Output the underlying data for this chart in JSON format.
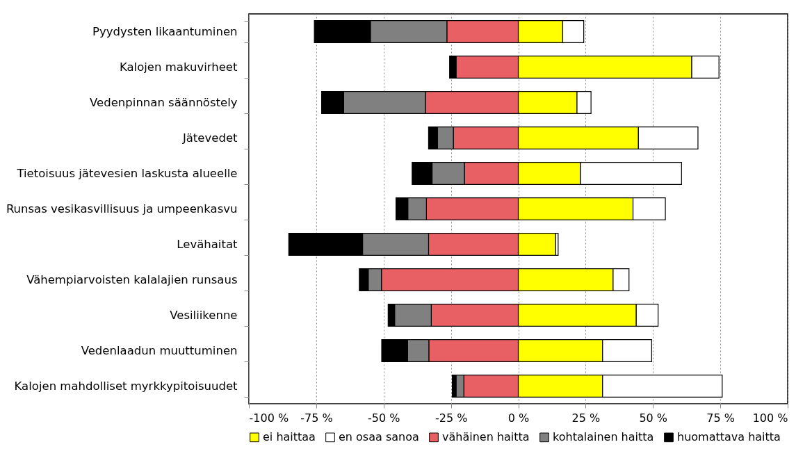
{
  "chart_data": {
    "type": "bar",
    "orientation": "horizontal",
    "stacked": true,
    "categories": [
      "Pyydysten likaantuminen",
      "Kalojen makuvirheet",
      "Vedenpinnan säännöstely",
      "Jätevedet",
      "Tietoisuus jätevesien laskusta alueelle",
      "Runsas vesikasvillisuus ja umpeenkasvu",
      "Levähaitat",
      "Vähempiarvoisten kalalajien runsaus",
      "Vesiliikenne",
      "Vedenlaadun muuttuminen",
      "Kalojen mahdolliset myrkkypitoisuudet"
    ],
    "series": [
      {
        "name": "ei haittaa",
        "color": "#ffff00",
        "values": [
          16.5,
          64.4,
          21.8,
          44.6,
          23.1,
          42.6,
          13.9,
          35.2,
          43.8,
          31.3,
          31.3
        ]
      },
      {
        "name": "en osaa sanoa",
        "color": "#ffffff",
        "values": [
          7.8,
          10.1,
          5.2,
          22.1,
          37.5,
          12.0,
          0.9,
          5.9,
          8.1,
          18.2,
          44.4
        ]
      },
      {
        "name": "vähäinen haitta",
        "color": "#e96064",
        "values": [
          -26.5,
          -23.1,
          -34.5,
          -24.1,
          -20.0,
          -34.1,
          -33.3,
          -50.8,
          -32.3,
          -33.2,
          -20.2
        ]
      },
      {
        "name": "kohtalainen haitta",
        "color": "#808080",
        "values": [
          -28.4,
          null,
          -30.3,
          -5.9,
          -12.0,
          -6.9,
          -24.5,
          -4.9,
          -13.6,
          -7.9,
          -2.9
        ]
      },
      {
        "name": "huomattava haitta",
        "color": "#000000",
        "values": [
          -20.8,
          -2.4,
          -8.2,
          -3.3,
          -7.4,
          -4.4,
          -27.4,
          -3.3,
          -2.4,
          -9.6,
          -1.4
        ]
      }
    ],
    "xlim": [
      -100,
      100
    ],
    "xticks": [
      {
        "value": -100,
        "label": "-100 %"
      },
      {
        "value": -75,
        "label": "-75 %"
      },
      {
        "value": -50,
        "label": "-50 %"
      },
      {
        "value": -25,
        "label": "-25 %"
      },
      {
        "value": 0,
        "label": "0 %"
      },
      {
        "value": 25,
        "label": "25 %"
      },
      {
        "value": 50,
        "label": "50 %"
      },
      {
        "value": 75,
        "label": "75 %"
      },
      {
        "value": 100,
        "label": "100 %"
      }
    ],
    "grid": "x",
    "legend": "bottom"
  }
}
